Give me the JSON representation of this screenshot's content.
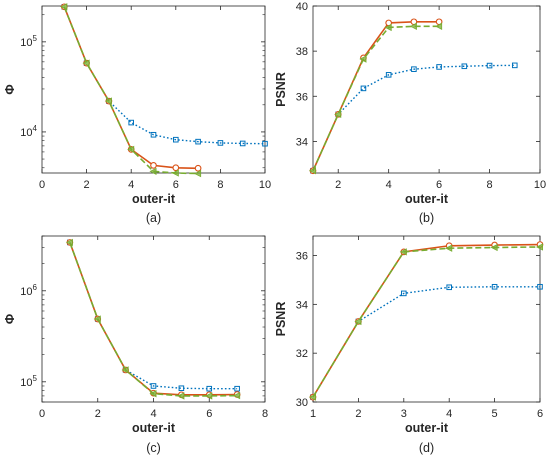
{
  "chart_data": [
    {
      "type": "line",
      "caption": "(a)",
      "xlabel": "outer-it",
      "ylabel": "Φ",
      "xlim": [
        0,
        10
      ],
      "ylim": [
        3500,
        250000
      ],
      "yscale": "log",
      "xticks": [
        0,
        2,
        4,
        6,
        8,
        10
      ],
      "xtick_labels": [
        "0",
        "2",
        "4",
        "6",
        "8",
        "10"
      ],
      "yticks": [
        10000,
        100000
      ],
      "ytick_labels": [
        "10^4",
        "10^5"
      ],
      "grid": false,
      "legend": "none",
      "series": [
        {
          "color": "#0072BD",
          "line": "dotted",
          "marker": "square",
          "x": [
            1,
            2,
            3,
            4,
            5,
            6,
            7,
            8,
            9,
            10
          ],
          "y": [
            245000,
            58000,
            22000,
            12700,
            9300,
            8200,
            7800,
            7550,
            7450,
            7400
          ]
        },
        {
          "color": "#D95319",
          "line": "solid",
          "marker": "circle",
          "x": [
            1,
            2,
            3,
            4,
            5,
            6,
            7
          ],
          "y": [
            245000,
            58000,
            22000,
            6400,
            4250,
            4000,
            3950
          ]
        },
        {
          "color": "#77AC30",
          "line": "dashed",
          "marker": "triangle-left",
          "x": [
            1,
            2,
            3,
            4,
            5,
            6,
            7
          ],
          "y": [
            245000,
            58000,
            22000,
            6400,
            3650,
            3500,
            3450
          ]
        }
      ]
    },
    {
      "type": "line",
      "caption": "(b)",
      "xlabel": "outer-it",
      "ylabel": "PSNR",
      "xlim": [
        1,
        10
      ],
      "ylim": [
        32.6,
        40
      ],
      "yscale": "linear",
      "xticks": [
        2,
        4,
        6,
        8,
        10
      ],
      "xtick_labels": [
        "2",
        "4",
        "6",
        "8",
        "10"
      ],
      "yticks": [
        34,
        36,
        38,
        40
      ],
      "ytick_labels": [
        "34",
        "36",
        "38",
        "40"
      ],
      "grid": false,
      "legend": "none",
      "series": [
        {
          "color": "#0072BD",
          "line": "dotted",
          "marker": "square",
          "x": [
            1,
            2,
            3,
            4,
            5,
            6,
            7,
            8,
            9
          ],
          "y": [
            32.7,
            35.2,
            36.35,
            36.95,
            37.2,
            37.3,
            37.33,
            37.36,
            37.37
          ]
        },
        {
          "color": "#D95319",
          "line": "solid",
          "marker": "circle",
          "x": [
            1,
            2,
            3,
            4,
            5,
            6
          ],
          "y": [
            32.7,
            35.2,
            37.7,
            39.25,
            39.3,
            39.3
          ]
        },
        {
          "color": "#77AC30",
          "line": "dashed",
          "marker": "triangle-left",
          "x": [
            1,
            2,
            3,
            4,
            5,
            6
          ],
          "y": [
            32.7,
            35.2,
            37.65,
            39.05,
            39.1,
            39.1
          ]
        }
      ]
    },
    {
      "type": "line",
      "caption": "(c)",
      "xlabel": "outer-it",
      "ylabel": "Φ",
      "xlim": [
        0,
        8
      ],
      "ylim": [
        60000,
        4000000
      ],
      "yscale": "log",
      "xticks": [
        0,
        2,
        4,
        6,
        8
      ],
      "xtick_labels": [
        "0",
        "2",
        "4",
        "6",
        "8"
      ],
      "yticks": [
        100000,
        1000000
      ],
      "ytick_labels": [
        "10^5",
        "10^6"
      ],
      "grid": false,
      "legend": "none",
      "series": [
        {
          "color": "#0072BD",
          "line": "dotted",
          "marker": "square",
          "x": [
            1,
            2,
            3,
            4,
            5,
            6,
            7
          ],
          "y": [
            3400000,
            490000,
            135000,
            90000,
            85000,
            84000,
            84000
          ]
        },
        {
          "color": "#D95319",
          "line": "solid",
          "marker": "circle",
          "x": [
            1,
            2,
            3,
            4,
            5,
            6,
            7
          ],
          "y": [
            3400000,
            490000,
            135000,
            75000,
            72000,
            72000,
            72500
          ]
        },
        {
          "color": "#77AC30",
          "line": "dashed",
          "marker": "triangle-left",
          "x": [
            1,
            2,
            3,
            4,
            5,
            6,
            7
          ],
          "y": [
            3400000,
            490000,
            135000,
            74000,
            70000,
            70000,
            70500
          ]
        }
      ]
    },
    {
      "type": "line",
      "caption": "(d)",
      "xlabel": "outer-it",
      "ylabel": "PSNR",
      "xlim": [
        1,
        6
      ],
      "ylim": [
        30,
        36.8
      ],
      "yscale": "linear",
      "xticks": [
        1,
        2,
        3,
        4,
        5,
        6
      ],
      "xtick_labels": [
        "1",
        "2",
        "3",
        "4",
        "5",
        "6"
      ],
      "yticks": [
        30,
        32,
        34,
        36
      ],
      "ytick_labels": [
        "30",
        "32",
        "34",
        "36"
      ],
      "grid": false,
      "legend": "none",
      "series": [
        {
          "color": "#0072BD",
          "line": "dotted",
          "marker": "square",
          "x": [
            1,
            2,
            3,
            4,
            5,
            6
          ],
          "y": [
            30.2,
            33.3,
            34.45,
            34.7,
            34.72,
            34.72
          ]
        },
        {
          "color": "#D95319",
          "line": "solid",
          "marker": "circle",
          "x": [
            1,
            2,
            3,
            4,
            5,
            6
          ],
          "y": [
            30.2,
            33.3,
            36.15,
            36.4,
            36.43,
            36.45
          ]
        },
        {
          "color": "#77AC30",
          "line": "dashed",
          "marker": "triangle-left",
          "x": [
            1,
            2,
            3,
            4,
            5,
            6
          ],
          "y": [
            30.2,
            33.3,
            36.15,
            36.3,
            36.33,
            36.35
          ]
        }
      ]
    }
  ]
}
